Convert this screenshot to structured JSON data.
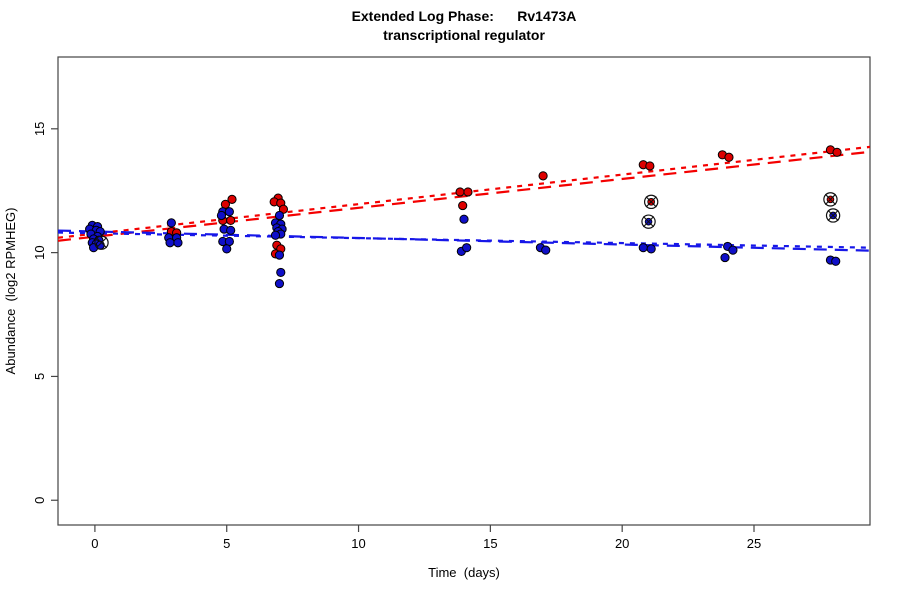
{
  "title": {
    "line1": "Extended Log Phase:      Rv1473A",
    "line2": "transcriptional regulator"
  },
  "axes": {
    "x_label": "Time  (days)",
    "y_label": "Abundance  (log2 RPMHEG)"
  },
  "chart_data": {
    "type": "scatter",
    "title": "Extended Log Phase: Rv1473A transcriptional regulator",
    "xlabel": "Time (days)",
    "ylabel": "Abundance (log2 RPMHEG)",
    "xlim": [
      -1.4,
      29.4
    ],
    "ylim": [
      -1.0,
      17.9
    ],
    "x_ticks": [
      0,
      5,
      10,
      15,
      20,
      25
    ],
    "y_ticks": [
      0,
      5,
      10,
      15
    ],
    "grid": false,
    "legend": "none",
    "colors": {
      "red": "#dd0000",
      "blue": "#0f0fc8",
      "red_line": "#f40000",
      "blue_line": "#1717e8",
      "axis": "#444444",
      "marker_ring": "#111111"
    },
    "series": [
      {
        "name": "red",
        "color_key": "red",
        "points": [
          [
            0.0,
            10.7
          ],
          [
            2.9,
            10.85
          ],
          [
            3.1,
            10.8
          ],
          [
            5.2,
            12.15
          ],
          [
            4.95,
            11.95
          ],
          [
            4.85,
            11.3
          ],
          [
            5.15,
            11.3
          ],
          [
            6.95,
            12.2
          ],
          [
            6.8,
            12.05
          ],
          [
            7.05,
            12.0
          ],
          [
            7.15,
            11.75
          ],
          [
            6.9,
            10.3
          ],
          [
            7.05,
            10.15
          ],
          [
            6.85,
            9.95
          ],
          [
            13.85,
            12.45
          ],
          [
            14.15,
            12.45
          ],
          [
            13.95,
            11.9
          ],
          [
            17.0,
            13.1
          ],
          [
            20.8,
            13.55
          ],
          [
            21.05,
            13.5
          ],
          [
            23.8,
            13.95
          ],
          [
            24.05,
            13.85
          ],
          [
            27.9,
            14.15
          ],
          [
            28.15,
            14.05
          ]
        ]
      },
      {
        "name": "blue",
        "color_key": "blue",
        "points": [
          [
            -0.1,
            11.1
          ],
          [
            0.1,
            11.05
          ],
          [
            -0.2,
            10.95
          ],
          [
            0.05,
            10.9
          ],
          [
            0.2,
            10.85
          ],
          [
            -0.15,
            10.75
          ],
          [
            0.1,
            10.65
          ],
          [
            -0.05,
            10.55
          ],
          [
            0.15,
            10.5
          ],
          [
            -0.1,
            10.4
          ],
          [
            0.05,
            10.35
          ],
          [
            0.2,
            10.3
          ],
          [
            -0.05,
            10.2
          ],
          [
            2.9,
            11.2
          ],
          [
            2.8,
            10.6
          ],
          [
            3.1,
            10.6
          ],
          [
            2.85,
            10.4
          ],
          [
            3.15,
            10.4
          ],
          [
            4.85,
            11.65
          ],
          [
            5.1,
            11.65
          ],
          [
            4.8,
            11.5
          ],
          [
            4.9,
            10.95
          ],
          [
            5.15,
            10.9
          ],
          [
            4.85,
            10.45
          ],
          [
            5.1,
            10.45
          ],
          [
            5.0,
            10.15
          ],
          [
            7.0,
            11.5
          ],
          [
            6.85,
            11.2
          ],
          [
            7.05,
            11.15
          ],
          [
            6.9,
            11.0
          ],
          [
            7.1,
            10.95
          ],
          [
            6.95,
            10.85
          ],
          [
            7.05,
            10.75
          ],
          [
            6.85,
            10.7
          ],
          [
            7.0,
            9.9
          ],
          [
            7.05,
            9.2
          ],
          [
            7.0,
            8.75
          ],
          [
            14.0,
            11.35
          ],
          [
            13.9,
            10.05
          ],
          [
            14.1,
            10.2
          ],
          [
            16.9,
            10.2
          ],
          [
            17.1,
            10.1
          ],
          [
            20.8,
            10.2
          ],
          [
            21.1,
            10.15
          ],
          [
            24.0,
            10.25
          ],
          [
            24.2,
            10.1
          ],
          [
            23.9,
            9.8
          ],
          [
            27.9,
            9.7
          ],
          [
            28.1,
            9.65
          ]
        ]
      }
    ],
    "flagged_points": [
      {
        "day": 0.25,
        "value": 10.4,
        "color_key": "none"
      },
      {
        "day": 21.1,
        "value": 12.05,
        "color_key": "red"
      },
      {
        "day": 21.0,
        "value": 11.25,
        "color_key": "blue"
      },
      {
        "day": 27.9,
        "value": 12.15,
        "color_key": "red"
      },
      {
        "day": 28.0,
        "value": 11.5,
        "color_key": "blue"
      }
    ],
    "trend_lines": [
      {
        "color_key": "red_line",
        "dash": "long",
        "x1": -1.4,
        "y1": 10.48,
        "x2": 29.4,
        "y2": 14.07
      },
      {
        "color_key": "red_line",
        "dash": "short",
        "x1": -1.4,
        "y1": 10.6,
        "x2": 29.4,
        "y2": 14.27
      },
      {
        "color_key": "blue_line",
        "dash": "long",
        "x1": -1.4,
        "y1": 10.89,
        "x2": 29.4,
        "y2": 10.08
      },
      {
        "color_key": "blue_line",
        "dash": "short",
        "x1": -1.4,
        "y1": 10.81,
        "x2": 29.4,
        "y2": 10.2
      }
    ]
  }
}
